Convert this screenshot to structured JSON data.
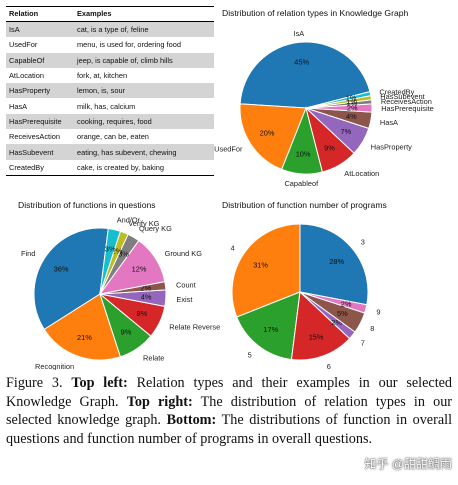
{
  "table": {
    "headers": [
      "Relation",
      "Examples"
    ],
    "rows": [
      [
        "IsA",
        "cat, is a type of, feline"
      ],
      [
        "UsedFor",
        "menu, is used for, ordering food"
      ],
      [
        "CapableOf",
        "jeep, is capable of, climb hills"
      ],
      [
        "AtLocation",
        "fork, at, kitchen"
      ],
      [
        "HasProperty",
        "lemon, is, sour"
      ],
      [
        "HasA",
        "milk, has, calcium"
      ],
      [
        "HasPrerequisite",
        "cooking, requires, food"
      ],
      [
        "ReceivesAction",
        "orange, can be, eaten"
      ],
      [
        "HasSubevent",
        "eating, has subevent, chewing"
      ],
      [
        "CreatedBy",
        "cake, is created by, baking"
      ]
    ]
  },
  "chart_data": [
    {
      "type": "pie",
      "title": "Distribution of relation types in Knowledge Graph",
      "labels": [
        "IsA",
        "UsedFor",
        "Capableof",
        "AtLocation",
        "HasProperty",
        "HasA",
        "HasPrerequisite",
        "ReceivesAction",
        "HasSubevent",
        "CreatedBy"
      ],
      "values": [
        45,
        20,
        10,
        9,
        7,
        4,
        2,
        1,
        1,
        1
      ],
      "value_labels": [
        "45%",
        "20%",
        "10%",
        "9%",
        "7%",
        "4%",
        "2%",
        "1%",
        "1%",
        "1%"
      ],
      "colors": [
        "#1f77b4",
        "#ff7f0e",
        "#2ca02c",
        "#d62728",
        "#9467bd",
        "#8c564b",
        "#e377c2",
        "#7f7f7f",
        "#bcbd22",
        "#17becf"
      ]
    },
    {
      "type": "pie",
      "title": "Distribution of functions in questions",
      "labels": [
        "Find",
        "Recognition",
        "Relate",
        "Relate Reverse",
        "Exist",
        "Count",
        "Ground KG",
        "Query KG",
        "Verify KG",
        "And/Or"
      ],
      "values": [
        36,
        21,
        9,
        8,
        4,
        2,
        12,
        3,
        2,
        3
      ],
      "value_labels": [
        "36%",
        "21%",
        "9%",
        "8%",
        "4%",
        "2%",
        "12%",
        "3%",
        "2%",
        "3%"
      ],
      "colors": [
        "#1f77b4",
        "#ff7f0e",
        "#2ca02c",
        "#d62728",
        "#9467bd",
        "#8c564b",
        "#e377c2",
        "#7f7f7f",
        "#bcbd22",
        "#17becf"
      ]
    },
    {
      "type": "pie",
      "title": "Distribution of function number of programs",
      "labels": [
        "3",
        "4",
        "5",
        "6",
        "7",
        "8",
        "9"
      ],
      "values": [
        28,
        31,
        17,
        15,
        2,
        5,
        2
      ],
      "value_labels": [
        "28%",
        "31%",
        "17%",
        "15%",
        "2%",
        "5%",
        "2%"
      ],
      "colors": [
        "#1f77b4",
        "#ff7f0e",
        "#2ca02c",
        "#d62728",
        "#9467bd",
        "#8c564b",
        "#e377c2"
      ]
    }
  ],
  "caption": {
    "figure": "Figure 3.",
    "top_left_label": "Top left:",
    "top_left_text": "Relation types and their examples in our selected Knowledge Graph.",
    "top_right_label": "Top right:",
    "top_right_text": "The distribution of relation types in our selected knowledge graph.",
    "bottom_label": "Bottom:",
    "bottom_text": "The distributions of function in overall questions and function number of programs in overall questions."
  },
  "watermark": "知乎 @甜甜鲷雨"
}
